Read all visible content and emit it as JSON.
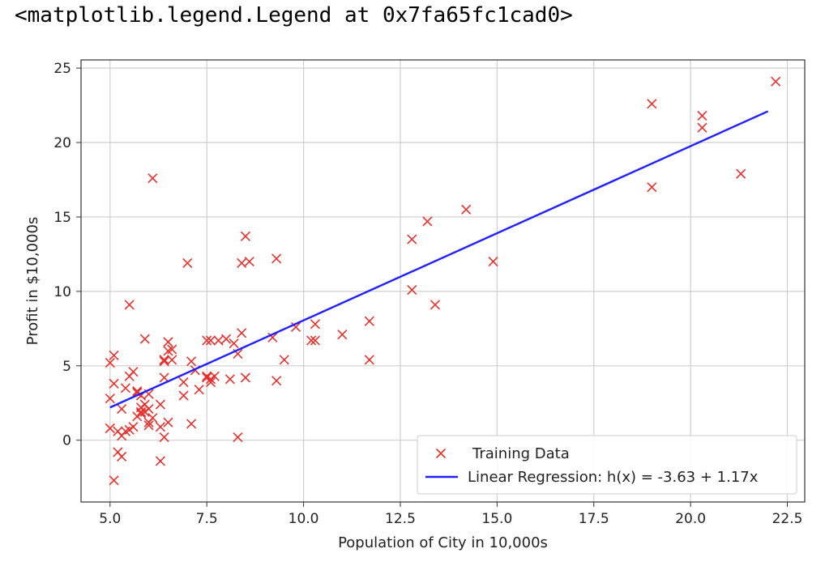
{
  "output_repr": "<matplotlib.legend.Legend at 0x7fa65fc1cad0>",
  "chart_data": {
    "type": "scatter",
    "title": "",
    "xlabel": "Population of City in 10,000s",
    "ylabel": "Profit in $10,000s",
    "xlim": [
      4.25,
      22.95
    ],
    "ylim": [
      -4.15,
      25.55
    ],
    "x_ticks": [
      5.0,
      7.5,
      10.0,
      12.5,
      15.0,
      17.5,
      20.0,
      22.5
    ],
    "x_tick_labels": [
      "5.0",
      "7.5",
      "10.0",
      "12.5",
      "15.0",
      "17.5",
      "20.0",
      "22.5"
    ],
    "y_ticks": [
      0,
      5,
      10,
      15,
      20,
      25
    ],
    "y_tick_labels": [
      "0",
      "5",
      "10",
      "15",
      "20",
      "25"
    ],
    "grid": true,
    "legend_position": "lower-right",
    "colors": {
      "training": "#e8302c",
      "regression": "#1f1fff"
    },
    "series": [
      {
        "name": "Training Data",
        "kind": "scatter",
        "marker": "x",
        "points": [
          [
            6.1,
            17.6
          ],
          [
            5.5,
            9.1
          ],
          [
            8.5,
            13.7
          ],
          [
            7.0,
            11.9
          ],
          [
            5.9,
            6.8
          ],
          [
            8.4,
            11.9
          ],
          [
            7.5,
            4.3
          ],
          [
            8.6,
            12.0
          ],
          [
            6.5,
            6.6
          ],
          [
            5.1,
            3.8
          ],
          [
            5.7,
            3.3
          ],
          [
            14.2,
            15.5
          ],
          [
            5.7,
            3.2
          ],
          [
            6.4,
            5.4
          ],
          [
            5.2,
            0.6
          ],
          [
            5.4,
            3.5
          ],
          [
            6.4,
            5.3
          ],
          [
            5.1,
            5.7
          ],
          [
            6.0,
            3.1
          ],
          [
            6.3,
            2.4
          ],
          [
            6.9,
            3.9
          ],
          [
            6.5,
            6.0
          ],
          [
            6.4,
            5.4
          ],
          [
            5.0,
            2.8
          ],
          [
            8.0,
            6.8
          ],
          [
            6.6,
            6.1
          ],
          [
            6.6,
            5.4
          ],
          [
            7.1,
            5.3
          ],
          [
            7.2,
            4.7
          ],
          [
            8.3,
            5.8
          ],
          [
            7.6,
            6.7
          ],
          [
            6.4,
            4.2
          ],
          [
            9.3,
            12.2
          ],
          [
            11.7,
            5.4
          ],
          [
            8.4,
            7.2
          ],
          [
            9.2,
            6.9
          ],
          [
            9.5,
            5.4
          ],
          [
            5.6,
            4.6
          ],
          [
            5.7,
            3.2
          ],
          [
            5.8,
            1.9
          ],
          [
            5.9,
            2.4
          ],
          [
            12.8,
            13.5
          ],
          [
            10.3,
            7.8
          ],
          [
            5.3,
            2.1
          ],
          [
            6.9,
            3.0
          ],
          [
            5.2,
            -0.8
          ],
          [
            5.3,
            -1.1
          ],
          [
            5.4,
            0.6
          ],
          [
            6.0,
            1.0
          ],
          [
            6.3,
            0.9
          ],
          [
            6.4,
            0.2
          ],
          [
            6.5,
            1.2
          ],
          [
            5.8,
            1.8
          ],
          [
            5.9,
            1.9
          ],
          [
            6.0,
            1.2
          ],
          [
            6.1,
            1.5
          ],
          [
            5.3,
            0.3
          ],
          [
            5.5,
            0.7
          ],
          [
            5.6,
            0.9
          ],
          [
            5.0,
            0.8
          ],
          [
            7.1,
            1.1
          ],
          [
            5.1,
            -2.7
          ],
          [
            6.3,
            -1.4
          ],
          [
            5.0,
            5.2
          ],
          [
            5.7,
            1.6
          ],
          [
            8.3,
            0.2
          ],
          [
            5.8,
            2.2
          ],
          [
            7.6,
            4.1
          ],
          [
            7.8,
            6.7
          ],
          [
            8.2,
            6.5
          ],
          [
            7.5,
            6.7
          ],
          [
            7.6,
            3.9
          ],
          [
            7.5,
            4.2
          ],
          [
            7.7,
            4.3
          ],
          [
            8.1,
            4.1
          ],
          [
            8.5,
            4.2
          ],
          [
            9.3,
            4.0
          ],
          [
            9.8,
            7.6
          ],
          [
            10.2,
            6.7
          ],
          [
            10.3,
            6.7
          ],
          [
            11.0,
            7.1
          ],
          [
            11.7,
            8.0
          ],
          [
            12.8,
            10.1
          ],
          [
            13.2,
            14.7
          ],
          [
            13.4,
            9.1
          ],
          [
            14.9,
            12.0
          ],
          [
            19.0,
            22.6
          ],
          [
            19.0,
            17.0
          ],
          [
            20.3,
            21.8
          ],
          [
            20.3,
            21.0
          ],
          [
            21.3,
            17.9
          ],
          [
            22.2,
            24.1
          ],
          [
            5.5,
            4.3
          ],
          [
            5.8,
            3.0
          ],
          [
            6.0,
            2.1
          ],
          [
            7.3,
            3.4
          ]
        ]
      },
      {
        "name": "Linear Regression: h(x) = -3.63 + 1.17x",
        "kind": "line",
        "points": [
          [
            5.0,
            2.2
          ],
          [
            22.0,
            22.1
          ]
        ]
      }
    ]
  }
}
